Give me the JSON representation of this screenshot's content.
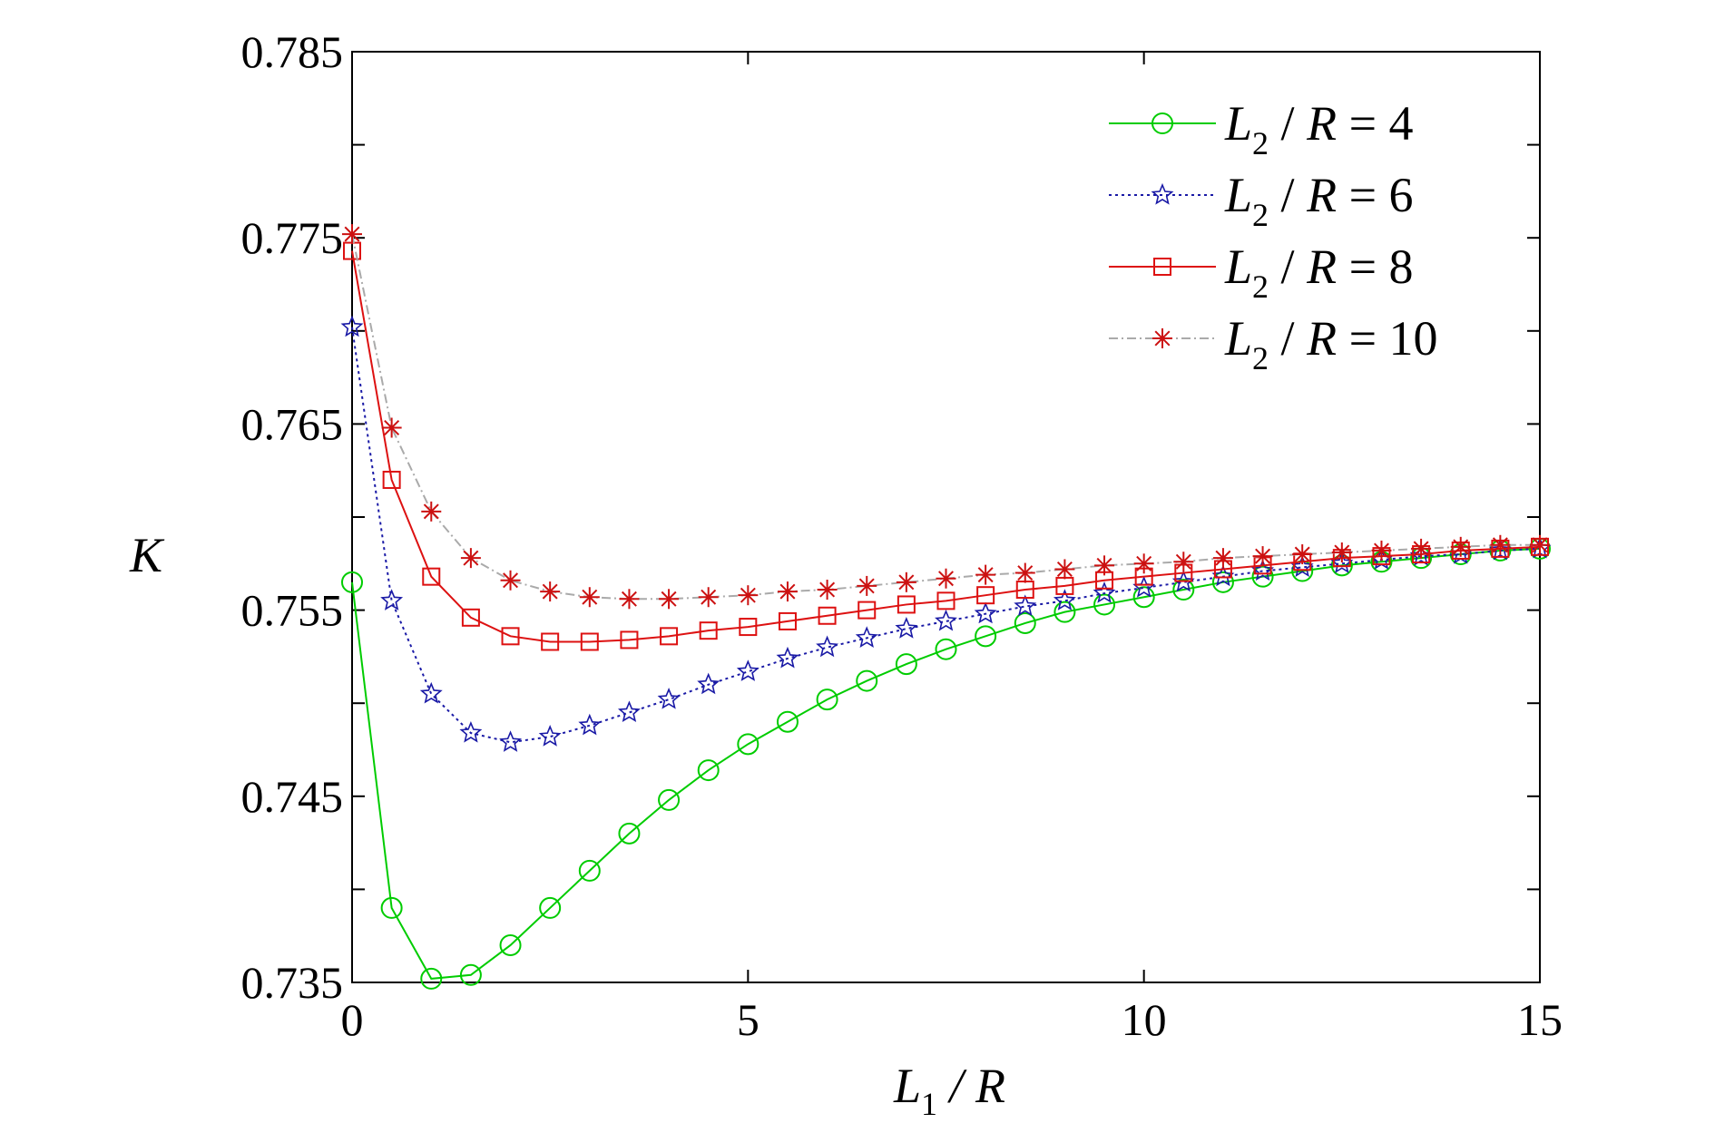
{
  "chart_data": {
    "type": "line",
    "xlabel": {
      "main": "L",
      "sub": "1",
      "rest": " / R"
    },
    "ylabel": "K",
    "xlim": [
      0,
      15
    ],
    "ylim": [
      0.735,
      0.785
    ],
    "xticks": [
      0,
      5,
      10,
      15
    ],
    "xtick_labels": [
      "0",
      "5",
      "10",
      "15"
    ],
    "yticks": [
      0.735,
      0.745,
      0.755,
      0.765,
      0.775,
      0.785
    ],
    "ytick_labels": [
      "0.735",
      "0.745",
      "0.755",
      "0.765",
      "0.775",
      "0.785"
    ],
    "grid": false,
    "legend_position": "top-right",
    "x": [
      0,
      0.5,
      1,
      1.5,
      2,
      2.5,
      3,
      3.5,
      4,
      4.5,
      5,
      5.5,
      6,
      6.5,
      7,
      7.5,
      8,
      8.5,
      9,
      9.5,
      10,
      10.5,
      11,
      11.5,
      12,
      12.5,
      13,
      13.5,
      14,
      14.5,
      15
    ],
    "series": [
      {
        "name": "L2 / R = 4",
        "legend": {
          "main": "L",
          "sub": "2",
          "rest": " / R = 4"
        },
        "color": "#00cc00",
        "marker": "circle",
        "dash": "solid",
        "values": [
          0.7565,
          0.739,
          0.7352,
          0.7354,
          0.737,
          0.739,
          0.741,
          0.743,
          0.7448,
          0.7464,
          0.7478,
          0.749,
          0.7502,
          0.7512,
          0.7521,
          0.7529,
          0.7536,
          0.7543,
          0.7549,
          0.7553,
          0.7557,
          0.7561,
          0.7565,
          0.7568,
          0.7571,
          0.7574,
          0.7576,
          0.7578,
          0.758,
          0.7582,
          0.7583
        ]
      },
      {
        "name": "L2 / R = 6",
        "legend": {
          "main": "L",
          "sub": "2",
          "rest": " / R = 6"
        },
        "color": "#1a1aa6",
        "marker": "star",
        "dash": "dotted",
        "values": [
          0.7702,
          0.7555,
          0.7505,
          0.7484,
          0.7479,
          0.7482,
          0.7488,
          0.7495,
          0.7502,
          0.751,
          0.7517,
          0.7524,
          0.753,
          0.7535,
          0.754,
          0.7544,
          0.7548,
          0.7552,
          0.7555,
          0.7559,
          0.7562,
          0.7565,
          0.7568,
          0.7571,
          0.7573,
          0.7575,
          0.7577,
          0.7579,
          0.758,
          0.7582,
          0.7583
        ]
      },
      {
        "name": "L2 / R = 8",
        "legend": {
          "main": "L",
          "sub": "2",
          "rest": " / R = 8"
        },
        "color": "#dd1111",
        "marker": "square",
        "dash": "solid",
        "values": [
          0.7743,
          0.762,
          0.7568,
          0.7546,
          0.7536,
          0.7533,
          0.7533,
          0.7534,
          0.7536,
          0.7539,
          0.7541,
          0.7544,
          0.7547,
          0.755,
          0.7553,
          0.7555,
          0.7558,
          0.7561,
          0.7563,
          0.7566,
          0.7568,
          0.757,
          0.7572,
          0.7574,
          0.7576,
          0.7578,
          0.7579,
          0.758,
          0.7582,
          0.7583,
          0.7584
        ]
      },
      {
        "name": "L2 / R = 10",
        "legend": {
          "main": "L",
          "sub": "2",
          "rest": " / R = 10"
        },
        "color": "#cc1111",
        "line_color": "#aaaaaa",
        "marker": "asterisk",
        "dash": "dashdot",
        "values": [
          0.7752,
          0.7648,
          0.7603,
          0.7578,
          0.7566,
          0.756,
          0.7557,
          0.7556,
          0.7556,
          0.7557,
          0.7558,
          0.756,
          0.7561,
          0.7563,
          0.7565,
          0.7567,
          0.7569,
          0.757,
          0.7572,
          0.7574,
          0.7575,
          0.7576,
          0.7578,
          0.7579,
          0.758,
          0.7581,
          0.7582,
          0.7583,
          0.7584,
          0.7585,
          0.7585
        ]
      }
    ]
  }
}
